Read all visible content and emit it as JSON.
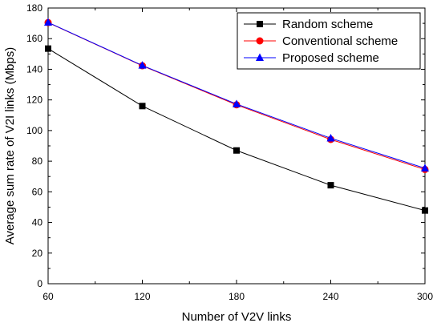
{
  "chart_data": {
    "type": "line",
    "title": "",
    "xlabel": "Number of V2V links",
    "ylabel": "Average sum rate of V2I links (Mbps)",
    "x": [
      60,
      120,
      180,
      240,
      300
    ],
    "xticks": [
      "60",
      "120",
      "180",
      "240",
      "300"
    ],
    "yticks": [
      "0",
      "20",
      "40",
      "60",
      "80",
      "100",
      "120",
      "140",
      "160",
      "180"
    ],
    "xlim": [
      60,
      300
    ],
    "ylim": [
      0,
      180
    ],
    "grid": false,
    "legend_position": "top-right",
    "series": [
      {
        "name": "Random scheme",
        "color": "#000000",
        "marker": "square",
        "values": [
          153.5,
          116,
          87,
          64.3,
          47.8
        ]
      },
      {
        "name": "Conventional scheme",
        "color": "#ff0000",
        "marker": "circle",
        "values": [
          170.5,
          142.3,
          116.8,
          94.2,
          74.6
        ]
      },
      {
        "name": "Proposed scheme",
        "color": "#0000ff",
        "marker": "triangle",
        "values": [
          170.6,
          142.5,
          117.3,
          95,
          75.4
        ]
      }
    ]
  }
}
